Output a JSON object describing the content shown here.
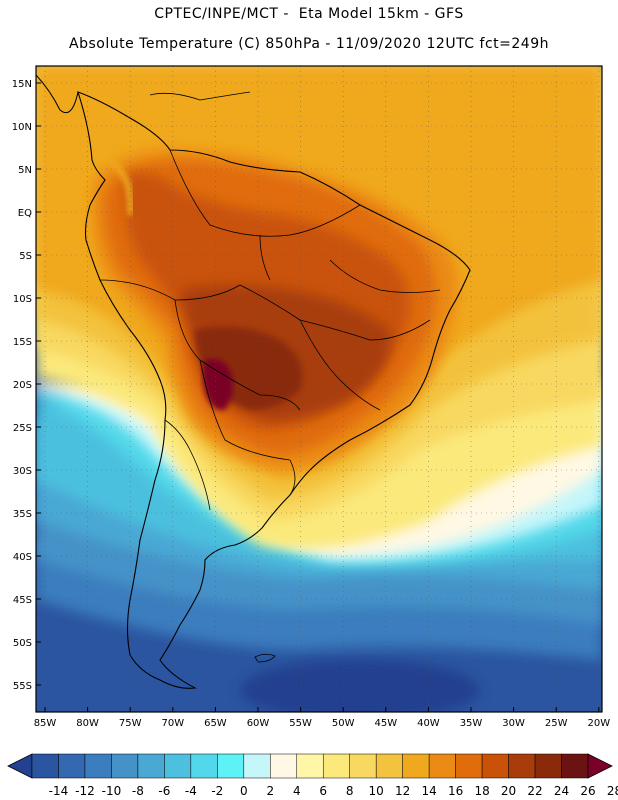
{
  "header": {
    "line1": "CPTEC/INPE/MCT -  Eta Model 15km - GFS",
    "line2": "Absolute Temperature (C) 850hPa - 11/09/2020 12UTC fct=249h"
  },
  "map": {
    "lat_labels": [
      "15N",
      "10N",
      "5N",
      "EQ",
      "5S",
      "10S",
      "15S",
      "20S",
      "25S",
      "30S",
      "35S",
      "40S",
      "45S",
      "50S",
      "55S"
    ],
    "lon_labels": [
      "85W",
      "80W",
      "75W",
      "70W",
      "65W",
      "60W",
      "55W",
      "50W",
      "45W",
      "40W",
      "35W",
      "30W",
      "25W",
      "20W"
    ]
  },
  "colorbar": {
    "labels": [
      "-14",
      "-12",
      "-10",
      "-8",
      "-6",
      "-4",
      "-2",
      "0",
      "2",
      "4",
      "6",
      "8",
      "10",
      "12",
      "14",
      "16",
      "18",
      "20",
      "22",
      "24",
      "26",
      "28"
    ],
    "colors": [
      "#23418f",
      "#2b55a0",
      "#3468b0",
      "#3b7dbe",
      "#4592c8",
      "#4aa8d4",
      "#4cc0de",
      "#52d8ea",
      "#5ef2f6",
      "#c4f6fa",
      "#fff8e4",
      "#fff6a8",
      "#fbe97c",
      "#f8d860",
      "#f3c23e",
      "#f0a81e",
      "#eb8a14",
      "#e06c0c",
      "#c95208",
      "#a83c0a",
      "#8a2a0a",
      "#6b1212",
      "#7a0028"
    ]
  }
}
